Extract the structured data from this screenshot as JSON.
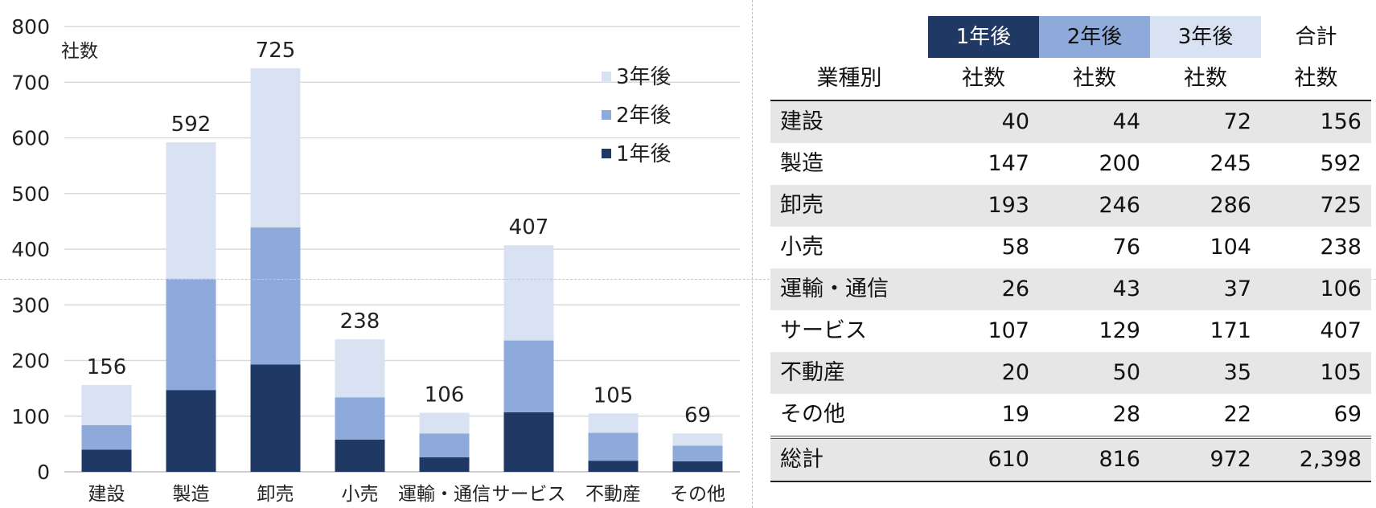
{
  "chart_data": {
    "type": "bar",
    "stacked": true,
    "categories": [
      "建設",
      "製造",
      "卸売",
      "小売",
      "運輸・通信",
      "サービス",
      "不動産",
      "その他"
    ],
    "series": [
      {
        "name": "1年後",
        "values": [
          40,
          147,
          193,
          58,
          26,
          107,
          20,
          19
        ],
        "color": "#1f3864"
      },
      {
        "name": "2年後",
        "values": [
          44,
          200,
          246,
          76,
          43,
          129,
          50,
          28
        ],
        "color": "#8eaadb"
      },
      {
        "name": "3年後",
        "values": [
          72,
          245,
          286,
          104,
          37,
          171,
          35,
          22
        ],
        "color": "#d9e2f3"
      }
    ],
    "totals": [
      156,
      592,
      725,
      238,
      106,
      407,
      105,
      69
    ],
    "ylabel": "社数",
    "ylim": [
      0,
      800
    ],
    "yticks": [
      0,
      100,
      200,
      300,
      400,
      500,
      600,
      700,
      800
    ],
    "grid": true,
    "legend_position": "top-right"
  },
  "table": {
    "year_headers": [
      "1年後",
      "2年後",
      "3年後"
    ],
    "total_header": "合計",
    "category_header": "業種別",
    "unit_label": "社数",
    "rows": [
      {
        "label": "建設",
        "values": [
          "40",
          "44",
          "72",
          "156"
        ]
      },
      {
        "label": "製造",
        "values": [
          "147",
          "200",
          "245",
          "592"
        ]
      },
      {
        "label": "卸売",
        "values": [
          "193",
          "246",
          "286",
          "725"
        ]
      },
      {
        "label": "小売",
        "values": [
          "58",
          "76",
          "104",
          "238"
        ]
      },
      {
        "label": "運輸・通信",
        "values": [
          "26",
          "43",
          "37",
          "106"
        ]
      },
      {
        "label": "サービス",
        "values": [
          "107",
          "129",
          "171",
          "407"
        ]
      },
      {
        "label": "不動産",
        "values": [
          "20",
          "50",
          "35",
          "105"
        ]
      },
      {
        "label": "その他",
        "values": [
          "19",
          "28",
          "22",
          "69"
        ]
      }
    ],
    "total_row": {
      "label": "総計",
      "values": [
        "610",
        "816",
        "972",
        "2,398"
      ]
    }
  }
}
